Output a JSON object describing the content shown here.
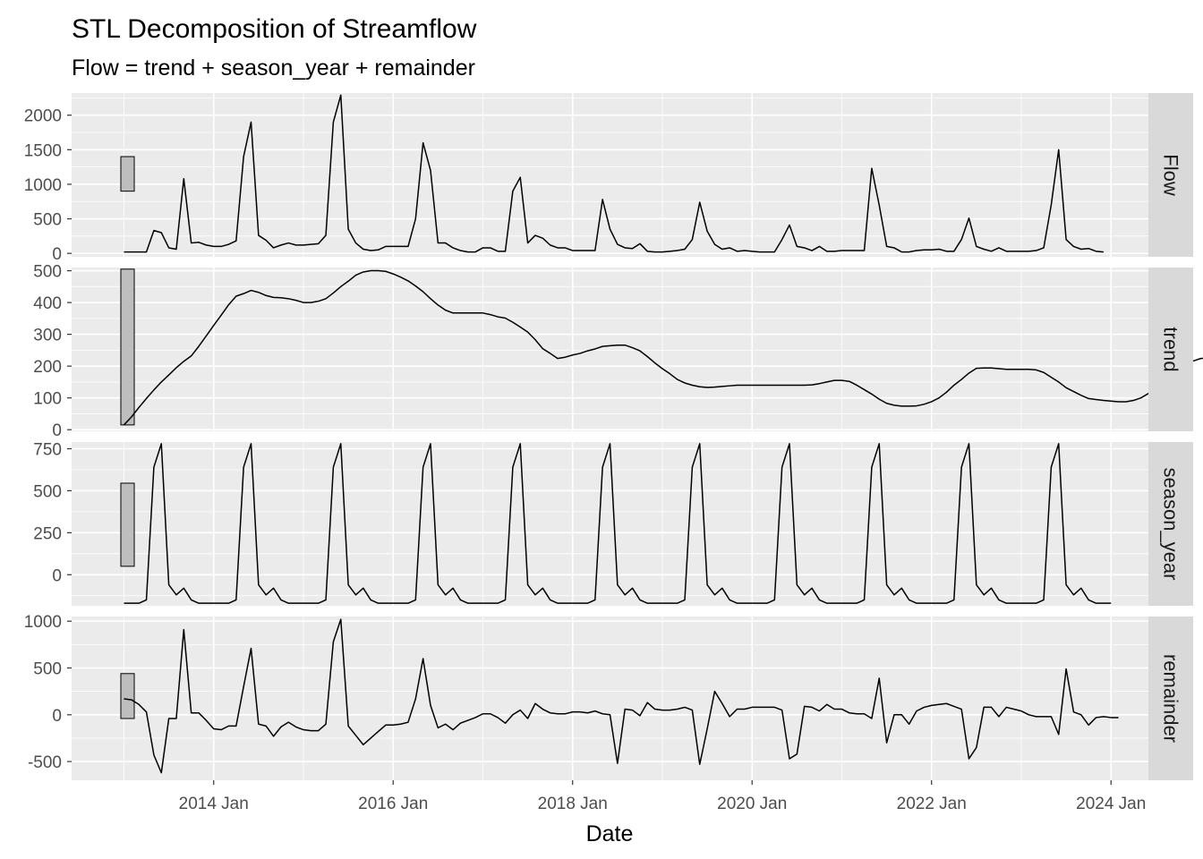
{
  "chart_data": {
    "type": "line",
    "title": "STL Decomposition of Streamflow",
    "subtitle": "Flow = trend + season_year + remainder",
    "xlabel": "Date",
    "x_ticks": [
      "2014 Jan",
      "2016 Jan",
      "2018 Jan",
      "2020 Jan",
      "2022 Jan",
      "2024 Jan"
    ],
    "x_range": [
      "2012-06",
      "2024-06"
    ],
    "start": "2013-01",
    "frequency": "monthly",
    "grid": true,
    "panels": [
      {
        "name": "Flow",
        "ylim": [
          -50,
          2320
        ],
        "yticks": [
          0,
          500,
          1000,
          1500,
          2000
        ],
        "scale_bar": [
          900,
          1400
        ],
        "values": [
          20,
          20,
          20,
          20,
          330,
          300,
          80,
          60,
          1080,
          150,
          160,
          120,
          100,
          100,
          130,
          180,
          1400,
          1900,
          260,
          190,
          80,
          120,
          150,
          120,
          120,
          130,
          140,
          260,
          1900,
          2290,
          350,
          150,
          60,
          40,
          50,
          100,
          100,
          100,
          100,
          500,
          1600,
          1200,
          150,
          150,
          80,
          40,
          20,
          20,
          80,
          80,
          30,
          30,
          900,
          1100,
          150,
          260,
          220,
          120,
          80,
          80,
          40,
          40,
          40,
          40,
          780,
          350,
          130,
          80,
          70,
          140,
          30,
          20,
          20,
          30,
          40,
          60,
          200,
          740,
          320,
          130,
          60,
          80,
          30,
          40,
          30,
          20,
          20,
          20,
          200,
          410,
          100,
          80,
          40,
          100,
          30,
          30,
          40,
          40,
          40,
          40,
          1230,
          700,
          100,
          80,
          20,
          20,
          40,
          50,
          50,
          60,
          30,
          30,
          200,
          510,
          100,
          60,
          30,
          80,
          30,
          30,
          30,
          30,
          40,
          80,
          700,
          1500,
          200,
          100,
          60,
          70,
          30,
          20
        ]
      },
      {
        "name": "trend",
        "ylim": [
          -5,
          510
        ],
        "yticks": [
          0,
          100,
          200,
          300,
          400,
          500
        ],
        "scale_bar": [
          15,
          505
        ],
        "values": [
          15,
          40,
          70,
          98,
          125,
          150,
          172,
          195,
          215,
          232,
          262,
          295,
          328,
          360,
          393,
          420,
          428,
          438,
          432,
          422,
          416,
          415,
          412,
          407,
          400,
          400,
          404,
          412,
          430,
          450,
          467,
          486,
          496,
          500,
          500,
          498,
          490,
          480,
          468,
          452,
          434,
          412,
          392,
          376,
          367,
          367,
          367,
          367,
          367,
          362,
          355,
          351,
          338,
          323,
          307,
          283,
          255,
          240,
          224,
          228,
          235,
          240,
          248,
          254,
          262,
          264,
          266,
          266,
          258,
          248,
          230,
          210,
          192,
          176,
          158,
          147,
          140,
          135,
          133,
          134,
          136,
          138,
          140,
          140,
          140,
          140,
          140,
          140,
          140,
          140,
          140,
          140,
          141,
          145,
          150,
          155,
          155,
          152,
          140,
          126,
          112,
          96,
          83,
          77,
          74,
          74,
          75,
          80,
          88,
          100,
          118,
          140,
          158,
          178,
          193,
          194,
          194,
          192,
          190,
          190,
          190,
          190,
          188,
          180,
          165,
          150,
          132,
          120,
          108,
          98,
          95,
          92,
          90,
          88,
          88,
          92,
          100,
          114,
          130,
          148,
          170,
          193,
          207,
          216,
          224,
          225,
          224,
          225,
          226,
          226,
          227,
          228,
          228,
          229,
          229,
          229
        ]
      },
      {
        "name": "season_year",
        "ylim": [
          -185,
          790
        ],
        "yticks": [
          0,
          250,
          500,
          750
        ],
        "scale_bar": [
          50,
          545
        ],
        "values": [
          -170,
          -170,
          -170,
          -150,
          640,
          780,
          -60,
          -120,
          -80,
          -150,
          -170,
          -170,
          -170,
          -170,
          -170,
          -150,
          640,
          780,
          -60,
          -120,
          -80,
          -150,
          -170,
          -170,
          -170,
          -170,
          -170,
          -150,
          640,
          780,
          -60,
          -120,
          -80,
          -150,
          -170,
          -170,
          -170,
          -170,
          -170,
          -150,
          640,
          780,
          -60,
          -120,
          -80,
          -150,
          -170,
          -170,
          -170,
          -170,
          -170,
          -150,
          640,
          780,
          -60,
          -120,
          -80,
          -150,
          -170,
          -170,
          -170,
          -170,
          -170,
          -150,
          640,
          780,
          -60,
          -120,
          -80,
          -150,
          -170,
          -170,
          -170,
          -170,
          -170,
          -150,
          640,
          780,
          -60,
          -120,
          -80,
          -150,
          -170,
          -170,
          -170,
          -170,
          -170,
          -150,
          640,
          780,
          -60,
          -120,
          -80,
          -150,
          -170,
          -170,
          -170,
          -170,
          -170,
          -150,
          640,
          780,
          -60,
          -120,
          -80,
          -150,
          -170,
          -170,
          -170,
          -170,
          -170,
          -150,
          640,
          780,
          -60,
          -120,
          -80,
          -150,
          -170,
          -170,
          -170,
          -170,
          -170,
          -150,
          640,
          780,
          -60,
          -120,
          -80,
          -150,
          -170,
          -170,
          -170
        ]
      },
      {
        "name": "remainder",
        "ylim": [
          -700,
          1050
        ],
        "yticks": [
          -500,
          0,
          500,
          1000
        ],
        "scale_bar": [
          -40,
          440
        ],
        "values": [
          170,
          160,
          110,
          30,
          -430,
          -620,
          -40,
          -40,
          910,
          20,
          20,
          -60,
          -150,
          -160,
          -120,
          -120,
          300,
          710,
          -100,
          -120,
          -230,
          -130,
          -80,
          -130,
          -160,
          -170,
          -170,
          -100,
          780,
          1020,
          -120,
          -220,
          -320,
          -250,
          -180,
          -110,
          -110,
          -100,
          -80,
          170,
          600,
          100,
          -140,
          -100,
          -160,
          -90,
          -60,
          -30,
          10,
          10,
          -30,
          -90,
          0,
          50,
          -40,
          120,
          60,
          20,
          10,
          10,
          30,
          30,
          20,
          40,
          10,
          0,
          -520,
          60,
          50,
          -10,
          130,
          60,
          50,
          50,
          60,
          80,
          50,
          -530,
          -150,
          250,
          120,
          -20,
          60,
          60,
          80,
          80,
          80,
          80,
          50,
          -470,
          -420,
          90,
          80,
          40,
          110,
          60,
          60,
          20,
          10,
          10,
          -40,
          390,
          -300,
          0,
          0,
          -100,
          40,
          80,
          100,
          110,
          120,
          90,
          60,
          -470,
          -350,
          80,
          80,
          -20,
          80,
          60,
          40,
          0,
          -20,
          -20,
          -20,
          -210,
          490,
          30,
          0,
          -110,
          -30,
          -20,
          -30,
          -30
        ]
      }
    ]
  }
}
